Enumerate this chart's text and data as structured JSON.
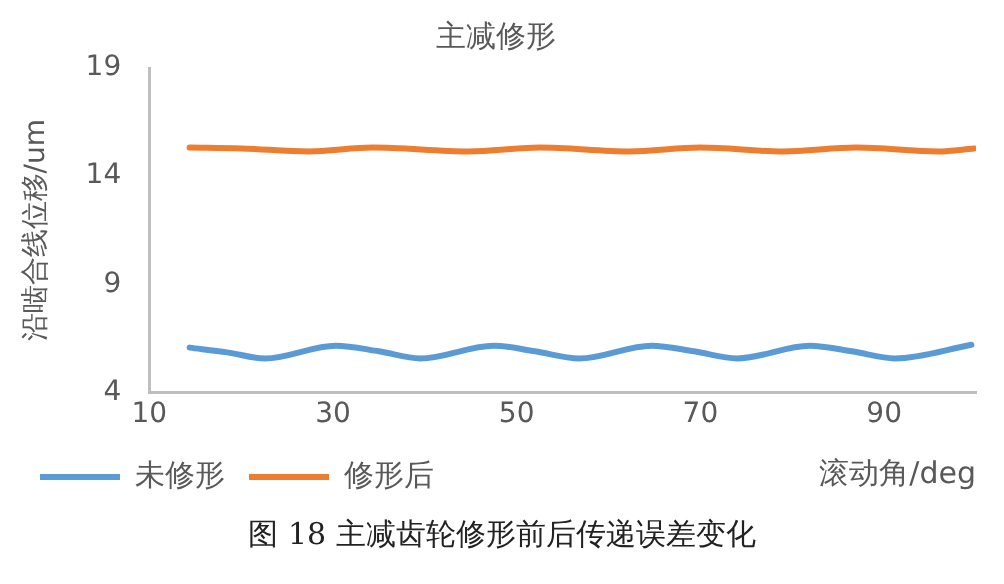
{
  "chart_data": {
    "type": "line",
    "title": "主减修形",
    "xlabel": "滚动角/deg",
    "ylabel": "沿啮合线位移/um",
    "annotations": [
      "图 18  主减齿轮修形前后传递误差变化"
    ],
    "xlim": [
      10,
      100
    ],
    "xticks": [
      10,
      30,
      50,
      70,
      90
    ],
    "ylim": [
      4,
      19
    ],
    "yticks": [
      4,
      9,
      14,
      19
    ],
    "grid": false,
    "legend": "bottom left",
    "marker": "none",
    "line_style": "solid",
    "series": [
      {
        "name": "未修形",
        "color": "#5b9bd5",
        "x": [
          14.4,
          18.5,
          22.6,
          30.3,
          35,
          39.5,
          47.5,
          52,
          56.8,
          64.7,
          69.3,
          74,
          81.9,
          86.5,
          91.2,
          99.5
        ],
        "values": [
          6.07,
          5.85,
          5.57,
          6.16,
          5.9,
          5.57,
          6.16,
          5.9,
          5.57,
          6.16,
          5.9,
          5.57,
          6.16,
          5.9,
          5.57,
          6.2
        ]
      },
      {
        "name": "修形后",
        "color": "#ed7d31",
        "x": [
          14.4,
          20,
          27.4,
          34.3,
          44.8,
          52.5,
          62.3,
          70,
          79,
          87,
          95.9,
          99.8
        ],
        "values": [
          15.32,
          15.28,
          15.14,
          15.32,
          15.14,
          15.32,
          15.14,
          15.32,
          15.14,
          15.32,
          15.14,
          15.28
        ]
      }
    ]
  }
}
